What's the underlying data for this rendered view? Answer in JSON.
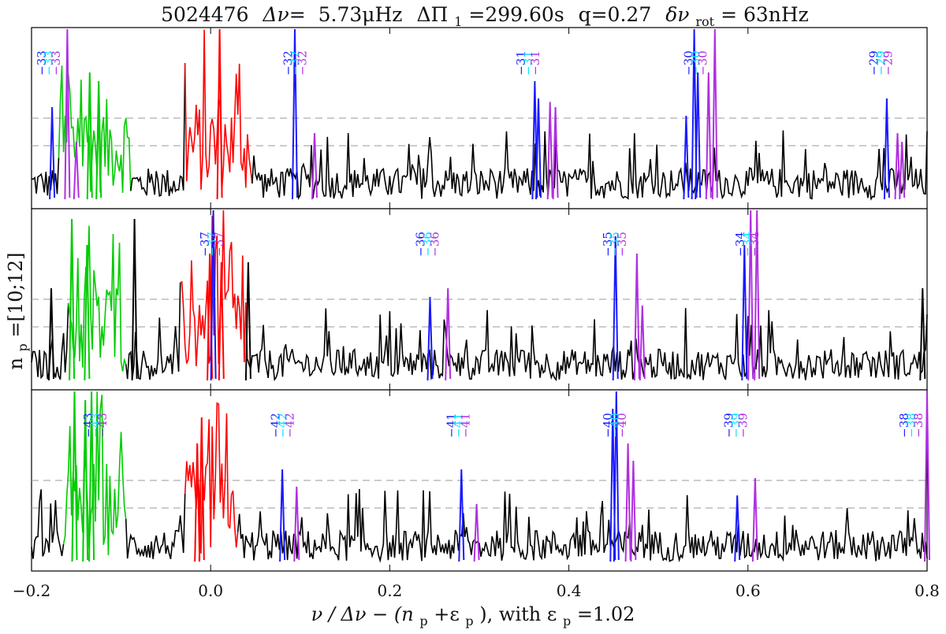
{
  "title": {
    "star": "5024476",
    "dnu_sym": "Δν=",
    "dnu_val": "5.73μHz",
    "dpi_sym": "ΔΠ",
    "dpi_sub": "1",
    "dpi_val": "=299.60s",
    "q": "q=0.27",
    "rot_sym": "δν",
    "rot_sub": "rot",
    "rot_val": "= 63nHz"
  },
  "ylabel": {
    "main": "n",
    "sub": "p",
    "rest": "=[10;12]"
  },
  "xlabel": {
    "part1": "ν / Δν − (n",
    "sub1": "p",
    "part2": "+ε",
    "sub2": "p",
    "part3": "),  with ε",
    "sub3": "p",
    "part4": "=1.02"
  },
  "chart_data": {
    "type": "line",
    "description_of_colors": {
      "background_spectrum": "#000000",
      "radial_l0": "#ff0000",
      "l2": "#00cc00",
      "mixed_m_minus1": "#1a1aff",
      "mixed_m0": "#00e5ff",
      "mixed_m_plus1": "#b030e0"
    },
    "xlim": [
      -0.2,
      0.8
    ],
    "xticks": [
      -0.2,
      0.0,
      0.2,
      0.4,
      0.6,
      0.8
    ],
    "xtick_labels": [
      "−0.2",
      "0.0",
      "0.2",
      "0.4",
      "0.6",
      "0.8"
    ],
    "panels": [
      {
        "bands": [
          {
            "color": "#00cc00",
            "from": -0.17,
            "to": -0.09
          },
          {
            "color": "#ff0000",
            "from": -0.03,
            "to": 0.045
          }
        ],
        "peaks": [
          {
            "x": -0.177,
            "h": 0.55,
            "color": "#1a1aff"
          },
          {
            "x": -0.16,
            "h": 1.0,
            "color": "#b030e0"
          },
          {
            "x": -0.15,
            "h": 0.35,
            "color": "#b030e0"
          },
          {
            "x": -0.135,
            "h": 0.75,
            "color": "#00cc00"
          },
          {
            "x": -0.125,
            "h": 0.7,
            "color": "#00cc00"
          },
          {
            "x": 0.01,
            "h": 1.0,
            "color": "#ff0000"
          },
          {
            "x": 0.094,
            "h": 1.0,
            "color": "#1a1aff"
          },
          {
            "x": 0.116,
            "h": 0.4,
            "color": "#b030e0"
          },
          {
            "x": 0.362,
            "h": 0.7,
            "color": "#1a1aff"
          },
          {
            "x": 0.366,
            "h": 0.6,
            "color": "#1a1aff"
          },
          {
            "x": 0.379,
            "h": 0.58,
            "color": "#b030e0"
          },
          {
            "x": 0.385,
            "h": 0.55,
            "color": "#b030e0"
          },
          {
            "x": 0.531,
            "h": 0.5,
            "color": "#1a1aff"
          },
          {
            "x": 0.54,
            "h": 1.0,
            "color": "#1a1aff"
          },
          {
            "x": 0.544,
            "h": 0.75,
            "color": "#1a1aff"
          },
          {
            "x": 0.556,
            "h": 0.75,
            "color": "#b030e0"
          },
          {
            "x": 0.563,
            "h": 1.0,
            "color": "#b030e0"
          },
          {
            "x": 0.755,
            "h": 0.6,
            "color": "#1a1aff"
          },
          {
            "x": 0.767,
            "h": 0.4,
            "color": "#b030e0"
          },
          {
            "x": 0.772,
            "h": 0.35,
            "color": "#b030e0"
          }
        ],
        "labels": [
          {
            "x": -0.177,
            "m": [
              {
                "t": "−33",
                "c": "#1a1aff"
              },
              {
                "t": "−33",
                "c": "#00e5ff"
              },
              {
                "t": "−33",
                "c": "#b030e0"
              }
            ]
          },
          {
            "x": 0.098,
            "m": [
              {
                "t": "−32",
                "c": "#1a1aff"
              },
              {
                "t": "−32",
                "c": "#00e5ff"
              },
              {
                "t": "−32",
                "c": "#b030e0"
              }
            ]
          },
          {
            "x": 0.358,
            "m": [
              {
                "t": "−31",
                "c": "#1a1aff"
              },
              {
                "t": "−31",
                "c": "#00e5ff"
              },
              {
                "t": "−31",
                "c": "#b030e0"
              }
            ]
          },
          {
            "x": 0.545,
            "m": [
              {
                "t": "−30",
                "c": "#1a1aff"
              },
              {
                "t": "−30",
                "c": "#00e5ff"
              },
              {
                "t": "−30",
                "c": "#b030e0"
              }
            ]
          },
          {
            "x": 0.752,
            "m": [
              {
                "t": "−29",
                "c": "#1a1aff"
              },
              {
                "t": "−29",
                "c": "#00e5ff"
              },
              {
                "t": "−29",
                "c": "#b030e0"
              }
            ]
          }
        ]
      },
      {
        "bands": [
          {
            "color": "#00cc00",
            "from": -0.16,
            "to": -0.095
          },
          {
            "color": "#ff0000",
            "from": -0.035,
            "to": 0.04
          }
        ],
        "peaks": [
          {
            "x": -0.178,
            "h": 0.55,
            "color": "#000000"
          },
          {
            "x": -0.155,
            "h": 0.95,
            "color": "#00cc00"
          },
          {
            "x": -0.138,
            "h": 0.8,
            "color": "#00cc00"
          },
          {
            "x": -0.085,
            "h": 0.95,
            "color": "#000000"
          },
          {
            "x": -0.001,
            "h": 0.75,
            "color": "#ff0000"
          },
          {
            "x": 0.003,
            "h": 1.0,
            "color": "#1a1aff"
          },
          {
            "x": 0.012,
            "h": 0.7,
            "color": "#ff0000"
          },
          {
            "x": 0.042,
            "h": 0.7,
            "color": "#000000"
          },
          {
            "x": 0.245,
            "h": 0.5,
            "color": "#1a1aff"
          },
          {
            "x": 0.265,
            "h": 0.55,
            "color": "#b030e0"
          },
          {
            "x": 0.452,
            "h": 0.85,
            "color": "#1a1aff"
          },
          {
            "x": 0.476,
            "h": 0.75,
            "color": "#b030e0"
          },
          {
            "x": 0.482,
            "h": 0.45,
            "color": "#b030e0"
          },
          {
            "x": 0.596,
            "h": 0.8,
            "color": "#1a1aff"
          },
          {
            "x": 0.603,
            "h": 1.0,
            "color": "#b030e0"
          },
          {
            "x": 0.61,
            "h": 1.0,
            "color": "#b030e0"
          },
          {
            "x": 0.795,
            "h": 0.55,
            "color": "#000000"
          }
        ],
        "labels": [
          {
            "x": 0.005,
            "m": [
              {
                "t": "−37",
                "c": "#1a1aff"
              },
              {
                "t": "−37",
                "c": "#00e5ff"
              },
              {
                "t": "−37",
                "c": "#b030e0"
              }
            ]
          },
          {
            "x": 0.246,
            "m": [
              {
                "t": "−36",
                "c": "#1a1aff"
              },
              {
                "t": "−36",
                "c": "#00e5ff"
              },
              {
                "t": "−36",
                "c": "#b030e0"
              }
            ]
          },
          {
            "x": 0.455,
            "m": [
              {
                "t": "−35",
                "c": "#1a1aff"
              },
              {
                "t": "−35",
                "c": "#00e5ff"
              },
              {
                "t": "−35",
                "c": "#b030e0"
              }
            ]
          },
          {
            "x": 0.603,
            "m": [
              {
                "t": "−34",
                "c": "#1a1aff"
              },
              {
                "t": "−34",
                "c": "#00e5ff"
              },
              {
                "t": "−34",
                "c": "#b030e0"
              }
            ]
          }
        ]
      },
      {
        "bands": [
          {
            "color": "#00cc00",
            "from": -0.165,
            "to": -0.095
          },
          {
            "color": "#ff0000",
            "from": -0.03,
            "to": 0.03
          }
        ],
        "peaks": [
          {
            "x": -0.152,
            "h": 1.0,
            "color": "#00cc00"
          },
          {
            "x": -0.14,
            "h": 0.95,
            "color": "#00cc00"
          },
          {
            "x": -0.133,
            "h": 1.0,
            "color": "#00cc00"
          },
          {
            "x": -0.015,
            "h": 0.7,
            "color": "#ff0000"
          },
          {
            "x": -0.01,
            "h": 0.85,
            "color": "#ff0000"
          },
          {
            "x": 0.08,
            "h": 0.55,
            "color": "#1a1aff"
          },
          {
            "x": 0.096,
            "h": 0.45,
            "color": "#b030e0"
          },
          {
            "x": 0.28,
            "h": 0.55,
            "color": "#1a1aff"
          },
          {
            "x": 0.297,
            "h": 0.35,
            "color": "#b030e0"
          },
          {
            "x": 0.449,
            "h": 0.9,
            "color": "#1a1aff"
          },
          {
            "x": 0.453,
            "h": 1.0,
            "color": "#1a1aff"
          },
          {
            "x": 0.466,
            "h": 0.7,
            "color": "#b030e0"
          },
          {
            "x": 0.472,
            "h": 0.6,
            "color": "#b030e0"
          },
          {
            "x": 0.588,
            "h": 0.4,
            "color": "#1a1aff"
          },
          {
            "x": 0.608,
            "h": 0.5,
            "color": "#b030e0"
          },
          {
            "x": 0.8,
            "h": 1.0,
            "color": "#b030e0"
          }
        ],
        "labels": [
          {
            "x": -0.125,
            "m": [
              {
                "t": "−43",
                "c": "#1a1aff"
              },
              {
                "t": "−43",
                "c": "#00e5ff"
              },
              {
                "t": "−43",
                "c": "#b030e0"
              }
            ]
          },
          {
            "x": 0.084,
            "m": [
              {
                "t": "−42",
                "c": "#1a1aff"
              },
              {
                "t": "−42",
                "c": "#00e5ff"
              },
              {
                "t": "−42",
                "c": "#b030e0"
              }
            ]
          },
          {
            "x": 0.28,
            "m": [
              {
                "t": "−41",
                "c": "#1a1aff"
              },
              {
                "t": "−41",
                "c": "#00e5ff"
              },
              {
                "t": "−41",
                "c": "#b030e0"
              }
            ]
          },
          {
            "x": 0.455,
            "m": [
              {
                "t": "−40",
                "c": "#1a1aff"
              },
              {
                "t": "−40",
                "c": "#00e5ff"
              },
              {
                "t": "−40",
                "c": "#b030e0"
              }
            ]
          },
          {
            "x": 0.59,
            "m": [
              {
                "t": "−39",
                "c": "#1a1aff"
              },
              {
                "t": "−39",
                "c": "#00e5ff"
              },
              {
                "t": "−39",
                "c": "#b030e0"
              }
            ]
          },
          {
            "x": 0.786,
            "m": [
              {
                "t": "−38",
                "c": "#1a1aff"
              },
              {
                "t": "−38",
                "c": "#00e5ff"
              },
              {
                "t": "−38",
                "c": "#b030e0"
              }
            ]
          }
        ]
      }
    ]
  }
}
